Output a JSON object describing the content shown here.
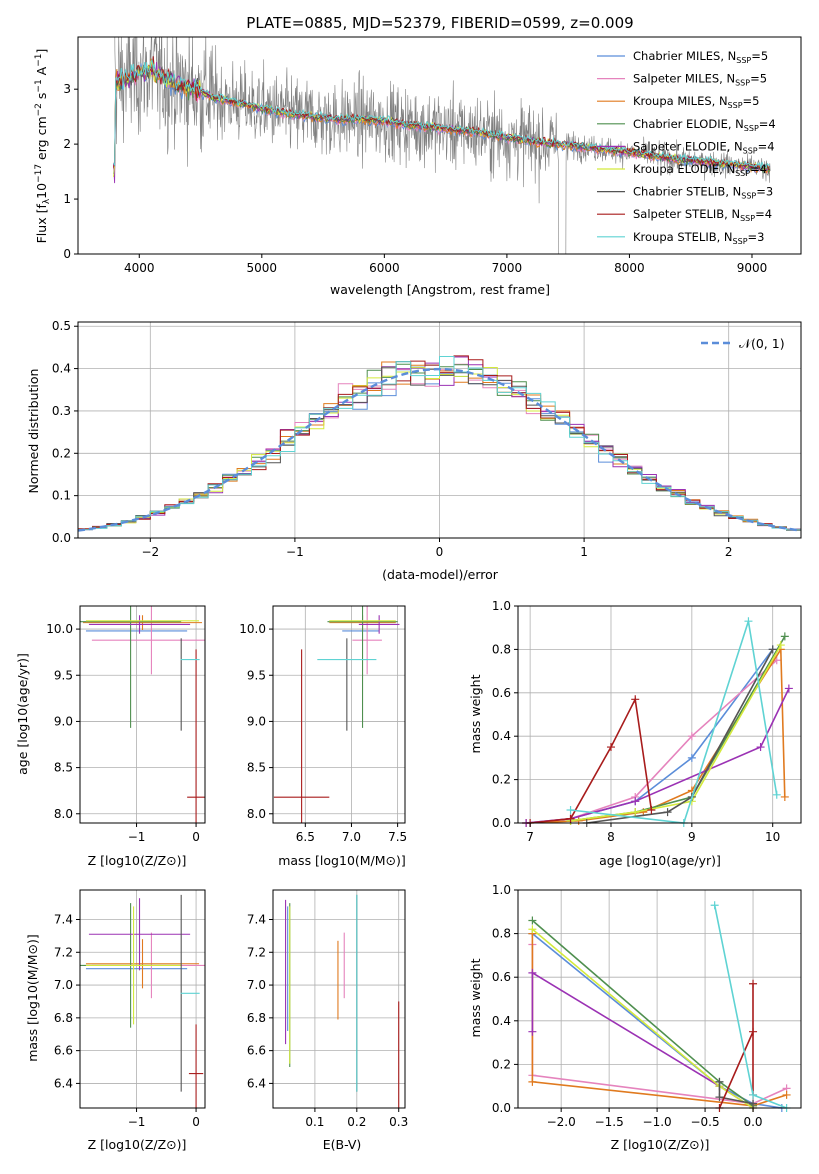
{
  "colors": {
    "chabrier_miles": "#5b8dd9",
    "salpeter_miles": "#e583bd",
    "kroupa_miles": "#e07a1f",
    "chabrier_elodie": "#4f8f4f",
    "salpeter_elodie": "#9b32b4",
    "kroupa_elodie": "#d4ea3c",
    "chabrier_stelib": "#555555",
    "salpeter_stelib": "#a81c1c",
    "kroupa_stelib": "#5fd3d3",
    "spectrum": "#808080",
    "normal": "#5b8dd9"
  },
  "chart_data": [
    {
      "id": "spectrum",
      "type": "line",
      "title": "PLATE=0885, MJD=52379, FIBERID=0599, z=0.009",
      "xlabel": "wavelength [Angstrom, rest frame]",
      "ylabel": "Flux [f_λ 10^-17 erg cm^-2 s^-1 A^-1]",
      "xlim": [
        3500,
        9400
      ],
      "ylim": [
        0,
        3.95
      ],
      "xticks": [
        4000,
        5000,
        6000,
        7000,
        8000,
        9000
      ],
      "yticks": [
        0,
        1,
        2,
        3
      ],
      "legend_position": "top-right",
      "legend": [
        {
          "base": "Chabrier MILES, N",
          "sub": "SSP",
          "tail": "=5"
        },
        {
          "base": "Salpeter MILES, N",
          "sub": "SSP",
          "tail": "=5"
        },
        {
          "base": "Kroupa MILES, N",
          "sub": "SSP",
          "tail": "=5"
        },
        {
          "base": "Chabrier ELODIE, N",
          "sub": "SSP",
          "tail": "=4"
        },
        {
          "base": "Salpeter ELODIE, N",
          "sub": "SSP",
          "tail": "=4"
        },
        {
          "base": "Kroupa ELODIE, N",
          "sub": "SSP",
          "tail": "=4"
        },
        {
          "base": "Chabrier STELIB, N",
          "sub": "SSP",
          "tail": "=3"
        },
        {
          "base": "Salpeter STELIB, N",
          "sub": "SSP",
          "tail": "=4"
        },
        {
          "base": "Kroupa STELIB, N",
          "sub": "SSP",
          "tail": "=3"
        }
      ],
      "model_continuum": {
        "x": [
          3800,
          3900,
          4000,
          4100,
          4200,
          4300,
          4400,
          4500,
          4600,
          4800,
          5000,
          5200,
          5400,
          5600,
          5800,
          6000,
          6200,
          6400,
          6600,
          6800,
          7000,
          7200,
          7400,
          7600,
          7800,
          8000,
          8200,
          8400,
          8600,
          8800,
          9000,
          9150
        ],
        "y": [
          3.1,
          3.2,
          3.3,
          3.35,
          3.2,
          3.1,
          3.05,
          2.95,
          2.85,
          2.75,
          2.65,
          2.55,
          2.5,
          2.45,
          2.45,
          2.42,
          2.35,
          2.3,
          2.25,
          2.2,
          2.12,
          2.05,
          2.0,
          1.95,
          1.9,
          1.85,
          1.78,
          1.72,
          1.68,
          1.63,
          1.58,
          1.55
        ]
      }
    },
    {
      "id": "residuals",
      "type": "histogram",
      "xlabel": "(data-model)/error",
      "ylabel": "Normed distribution",
      "xlim": [
        -2.5,
        2.5
      ],
      "ylim": [
        0,
        0.51
      ],
      "xticks": [
        -2,
        -1,
        0,
        1,
        2
      ],
      "yticks": [
        0,
        0.1,
        0.2,
        0.3,
        0.4,
        0.5
      ],
      "bin_width": 0.1,
      "grid": true,
      "legend": "𝒩(0, 1)",
      "legend_position": "top-right"
    },
    {
      "id": "age_vs_Z",
      "type": "errorbar",
      "xlabel": "Z [log10(Z/Z⊙)]",
      "ylabel": "age [log10(age/yr)]",
      "xlim": [
        -1.95,
        0.15
      ],
      "ylim": [
        7.9,
        10.25
      ],
      "xticks": [
        -1,
        0
      ],
      "yticks": [
        8.0,
        8.5,
        9.0,
        9.5,
        10.0
      ],
      "points": [
        {
          "model": "chabrier_miles",
          "x": -1.0,
          "xerr": 0.85,
          "y": 9.98,
          "yerr": 0.0
        },
        {
          "model": "salpeter_miles",
          "x": -0.75,
          "xerr": 1.0,
          "y": 9.88,
          "yerr": 0.37
        },
        {
          "model": "kroupa_miles",
          "x": -0.9,
          "xerr": 1.0,
          "y": 10.07,
          "yerr": 0.08
        },
        {
          "model": "chabrier_elodie",
          "x": -1.1,
          "xerr": 0.85,
          "y": 10.08,
          "yerr": 1.15
        },
        {
          "model": "salpeter_elodie",
          "x": -0.95,
          "xerr": 0.85,
          "y": 10.05,
          "yerr": 0.1
        },
        {
          "model": "kroupa_elodie",
          "x": -0.9,
          "xerr": 0.95,
          "y": 10.09,
          "yerr": 0.0
        },
        {
          "model": "chabrier_stelib",
          "x": -0.25,
          "xerr": 0.0,
          "y": 9.4,
          "yerr": 0.5
        },
        {
          "model": "salpeter_stelib",
          "x": 0.0,
          "xerr": 0.15,
          "y": 8.18,
          "yerr": 1.6
        },
        {
          "model": "kroupa_stelib",
          "x": -0.1,
          "xerr": 0.16,
          "y": 9.67,
          "yerr": 0.0
        }
      ]
    },
    {
      "id": "age_vs_mass",
      "type": "errorbar",
      "xlabel": "mass [log10(M/M⊙)]",
      "ylabel": "",
      "xlim": [
        6.15,
        7.58
      ],
      "ylim": [
        7.9,
        10.25
      ],
      "xticks": [
        6.5,
        7.0,
        7.5
      ],
      "yticks": [
        8.0,
        8.5,
        9.0,
        9.5,
        10.0
      ],
      "points": [
        {
          "model": "chabrier_miles",
          "x": 7.1,
          "xerr": 0.2,
          "y": 9.98,
          "yerr": 0.0
        },
        {
          "model": "salpeter_miles",
          "x": 7.17,
          "xerr": 0.16,
          "y": 9.88,
          "yerr": 0.37
        },
        {
          "model": "kroupa_miles",
          "x": 7.12,
          "xerr": 0.36,
          "y": 10.07,
          "yerr": 0.08
        },
        {
          "model": "chabrier_elodie",
          "x": 7.12,
          "xerr": 0.38,
          "y": 10.08,
          "yerr": 1.15
        },
        {
          "model": "salpeter_elodie",
          "x": 7.3,
          "xerr": 0.22,
          "y": 10.05,
          "yerr": 0.1
        },
        {
          "model": "kroupa_elodie",
          "x": 7.12,
          "xerr": 0.36,
          "y": 10.09,
          "yerr": 0.0
        },
        {
          "model": "chabrier_stelib",
          "x": 6.95,
          "xerr": 0.0,
          "y": 9.4,
          "yerr": 0.5
        },
        {
          "model": "salpeter_stelib",
          "x": 6.46,
          "xerr": 0.3,
          "y": 8.18,
          "yerr": 1.6
        },
        {
          "model": "kroupa_stelib",
          "x": 6.95,
          "xerr": 0.32,
          "y": 9.67,
          "yerr": 0.0
        }
      ]
    },
    {
      "id": "weight_vs_age",
      "type": "line",
      "xlabel": "age [log10(age/yr)]",
      "ylabel": "mass weight",
      "xlim": [
        6.85,
        10.35
      ],
      "ylim": [
        0,
        1.0
      ],
      "xticks": [
        7,
        8,
        9,
        10
      ],
      "yticks": [
        0.0,
        0.2,
        0.4,
        0.6,
        0.8,
        1.0
      ],
      "series": [
        {
          "model": "chabrier_miles",
          "x": [
            6.95,
            7.5,
            8.3,
            9.0,
            10.0
          ],
          "y": [
            0.0,
            0.02,
            0.1,
            0.3,
            0.8
          ]
        },
        {
          "model": "salpeter_miles",
          "x": [
            6.95,
            7.5,
            8.3,
            9.0,
            10.05
          ],
          "y": [
            0.0,
            0.02,
            0.12,
            0.4,
            0.75
          ]
        },
        {
          "model": "kroupa_miles",
          "x": [
            6.95,
            7.6,
            8.4,
            9.0,
            10.1,
            10.15
          ],
          "y": [
            0.0,
            0.01,
            0.05,
            0.15,
            0.8,
            0.12
          ]
        },
        {
          "model": "chabrier_elodie",
          "x": [
            7.5,
            8.3,
            9.0,
            10.15
          ],
          "y": [
            0.01,
            0.05,
            0.12,
            0.86
          ]
        },
        {
          "model": "salpeter_elodie",
          "x": [
            6.95,
            7.5,
            8.3,
            9.85,
            10.2
          ],
          "y": [
            0.0,
            0.02,
            0.1,
            0.35,
            0.62
          ]
        },
        {
          "model": "kroupa_elodie",
          "x": [
            7.5,
            8.3,
            9.0,
            10.1
          ],
          "y": [
            0.01,
            0.05,
            0.1,
            0.82
          ]
        },
        {
          "model": "chabrier_stelib",
          "x": [
            7.7,
            8.7,
            9.0,
            10.0
          ],
          "y": [
            0.0,
            0.05,
            0.12,
            0.8
          ]
        },
        {
          "model": "salpeter_stelib",
          "x": [
            7.0,
            7.5,
            8.0,
            8.3,
            8.5
          ],
          "y": [
            0.0,
            0.02,
            0.35,
            0.57,
            0.06
          ]
        },
        {
          "model": "kroupa_stelib",
          "x": [
            7.5,
            8.9,
            9.7,
            10.05
          ],
          "y": [
            0.06,
            0.0,
            0.93,
            0.13
          ]
        }
      ]
    },
    {
      "id": "mass_vs_Z",
      "type": "errorbar",
      "xlabel": "Z [log10(Z/Z⊙)]",
      "ylabel": "mass [log10(M/M⊙)]",
      "xlim": [
        -1.95,
        0.15
      ],
      "ylim": [
        6.25,
        7.58
      ],
      "xticks": [
        -1,
        0
      ],
      "yticks": [
        6.4,
        6.6,
        6.8,
        7.0,
        7.2,
        7.4
      ],
      "points": [
        {
          "model": "chabrier_miles",
          "x": -1.0,
          "xerr": 0.85,
          "y": 7.1,
          "yerr": 0.0
        },
        {
          "model": "salpeter_miles",
          "x": -0.75,
          "xerr": 1.0,
          "y": 7.12,
          "yerr": 0.2
        },
        {
          "model": "kroupa_miles",
          "x": -0.9,
          "xerr": 0.95,
          "y": 7.13,
          "yerr": 0.15
        },
        {
          "model": "chabrier_elodie",
          "x": -1.1,
          "xerr": 0.85,
          "y": 7.12,
          "yerr": 0.38
        },
        {
          "model": "salpeter_elodie",
          "x": -0.95,
          "xerr": 0.85,
          "y": 7.31,
          "yerr": 0.22
        },
        {
          "model": "kroupa_elodie",
          "x": -1.05,
          "xerr": 0.8,
          "y": 7.12,
          "yerr": 0.36
        },
        {
          "model": "chabrier_stelib",
          "x": -0.25,
          "xerr": 0.0,
          "y": 6.95,
          "yerr": 0.6
        },
        {
          "model": "salpeter_stelib",
          "x": 0.0,
          "xerr": 0.12,
          "y": 6.46,
          "yerr": 0.3
        },
        {
          "model": "kroupa_stelib",
          "x": -0.1,
          "xerr": 0.16,
          "y": 6.95,
          "yerr": 0.0
        }
      ]
    },
    {
      "id": "mass_vs_ebv",
      "type": "errorbar",
      "xlabel": "E(B-V)",
      "ylabel": "",
      "xlim": [
        0.0,
        0.315
      ],
      "ylim": [
        6.25,
        7.58
      ],
      "xticks": [
        0.1,
        0.2,
        0.3
      ],
      "yticks": [
        6.4,
        6.6,
        6.8,
        7.0,
        7.2,
        7.4
      ],
      "points": [
        {
          "model": "chabrier_miles",
          "x": 0.035,
          "xerr": 0.0,
          "y": 7.1,
          "yerr": 0.38
        },
        {
          "model": "salpeter_miles",
          "x": 0.17,
          "xerr": 0.0,
          "y": 7.12,
          "yerr": 0.2
        },
        {
          "model": "kroupa_miles",
          "x": 0.155,
          "xerr": 0.0,
          "y": 7.03,
          "yerr": 0.24
        },
        {
          "model": "chabrier_elodie",
          "x": 0.04,
          "xerr": 0.0,
          "y": 7.0,
          "yerr": 0.5
        },
        {
          "model": "salpeter_elodie",
          "x": 0.03,
          "xerr": 0.0,
          "y": 7.08,
          "yerr": 0.44
        },
        {
          "model": "kroupa_elodie",
          "x": 0.04,
          "xerr": 0.0,
          "y": 7.0,
          "yerr": 0.48
        },
        {
          "model": "chabrier_stelib",
          "x": 0.2,
          "xerr": 0.0,
          "y": 6.95,
          "yerr": 0.6
        },
        {
          "model": "salpeter_stelib",
          "x": 0.3,
          "xerr": 0.0,
          "y": 6.5,
          "yerr": 0.4
        },
        {
          "model": "kroupa_stelib",
          "x": 0.2,
          "xerr": 0.0,
          "y": 6.95,
          "yerr": 0.6
        }
      ]
    },
    {
      "id": "weight_vs_Z",
      "type": "line",
      "xlabel": "Z [log10(Z/Z⊙)]",
      "ylabel": "mass weight",
      "xlim": [
        -2.45,
        0.5
      ],
      "ylim": [
        0,
        1.0
      ],
      "xticks": [
        -2.0,
        -1.5,
        -1.0,
        -0.5,
        0.0
      ],
      "yticks": [
        0.0,
        0.2,
        0.4,
        0.6,
        0.8,
        1.0
      ],
      "series": [
        {
          "model": "chabrier_miles",
          "x": [
            -2.3,
            -0.35,
            0.0,
            0.3
          ],
          "y": [
            0.8,
            0.1,
            0.02,
            0.0
          ]
        },
        {
          "model": "salpeter_miles",
          "x": [
            -2.3,
            -2.3,
            0.0,
            0.35
          ],
          "y": [
            0.75,
            0.15,
            0.02,
            0.09
          ]
        },
        {
          "model": "kroupa_miles",
          "x": [
            -2.3,
            -2.3,
            0.0,
            0.35
          ],
          "y": [
            0.8,
            0.12,
            0.01,
            0.06
          ]
        },
        {
          "model": "chabrier_elodie",
          "x": [
            -2.3,
            -0.35,
            0.0
          ],
          "y": [
            0.86,
            0.12,
            0.01
          ]
        },
        {
          "model": "salpeter_elodie",
          "x": [
            -2.3,
            -2.3,
            -0.35,
            0.0
          ],
          "y": [
            0.35,
            0.62,
            0.1,
            0.0
          ]
        },
        {
          "model": "kroupa_elodie",
          "x": [
            -2.3,
            -0.35,
            0.0
          ],
          "y": [
            0.82,
            0.1,
            0.0
          ]
        },
        {
          "model": "chabrier_stelib",
          "x": [
            -0.35,
            -0.35,
            0.0
          ],
          "y": [
            0.12,
            0.05,
            0.02
          ]
        },
        {
          "model": "salpeter_stelib",
          "x": [
            -0.35,
            0.0,
            0.0,
            0.0
          ],
          "y": [
            0.0,
            0.35,
            0.57,
            0.06
          ]
        },
        {
          "model": "kroupa_stelib",
          "x": [
            -0.4,
            0.0,
            0.35
          ],
          "y": [
            0.93,
            0.06,
            0.0
          ]
        }
      ]
    }
  ]
}
